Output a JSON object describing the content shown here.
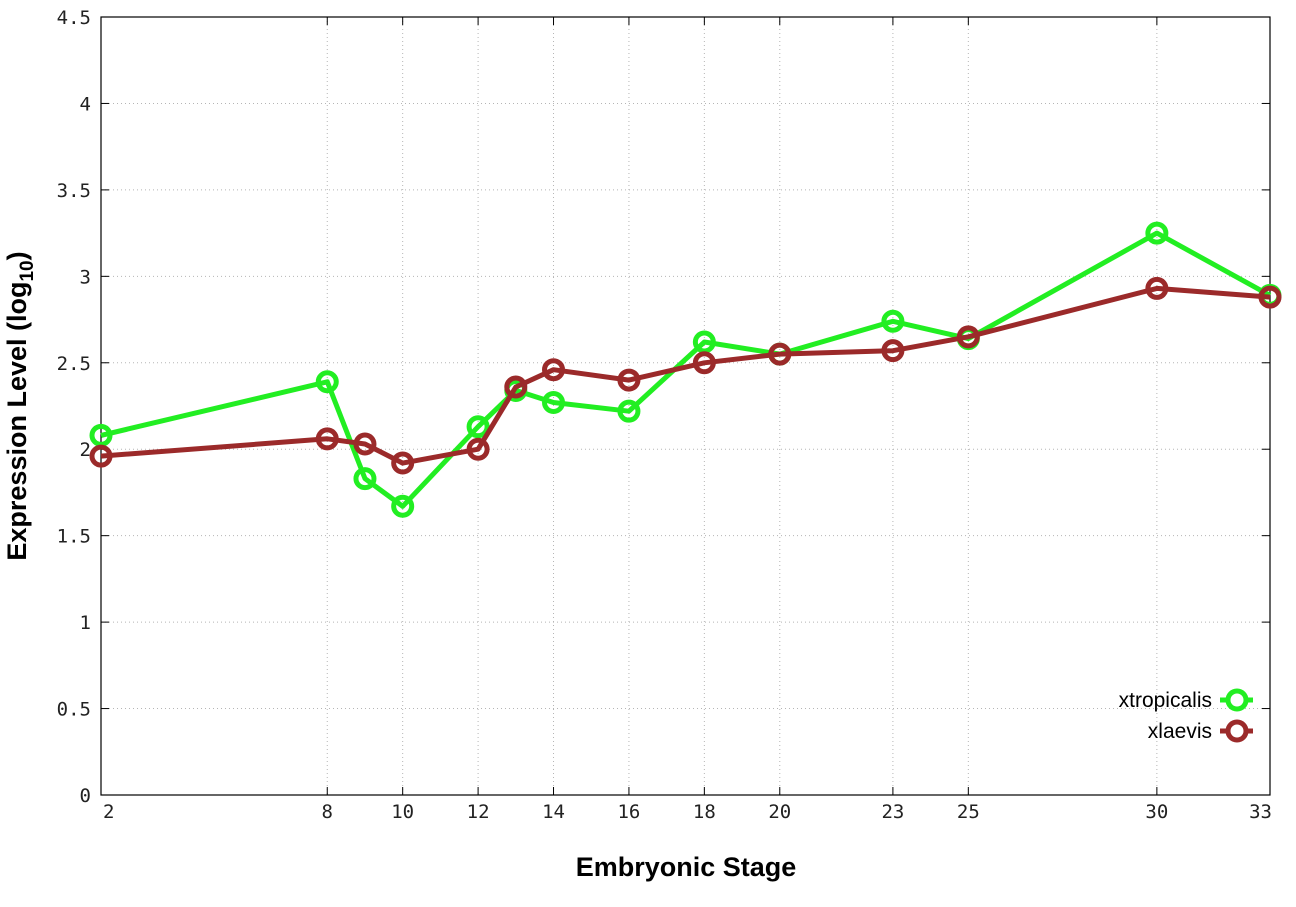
{
  "chart_data": {
    "type": "line",
    "xlabel": "Embryonic Stage",
    "ylabel": "Expression Level (log",
    "ylabel_sub": "10",
    "ylabel_close": ")",
    "xlim": [
      2,
      33
    ],
    "ylim": [
      0,
      4.5
    ],
    "x_ticks": [
      2,
      8,
      10,
      12,
      14,
      16,
      18,
      20,
      23,
      25,
      30,
      33
    ],
    "y_ticks": [
      0,
      0.5,
      1,
      1.5,
      2,
      2.5,
      3,
      3.5,
      4,
      4.5
    ],
    "y_tick_labels": [
      "0",
      "0.5",
      "1",
      "1.5",
      "2",
      "2.5",
      "3",
      "3.5",
      "4",
      "4.5"
    ],
    "grid": true,
    "legend_position": "bottom-right",
    "series": [
      {
        "name": "xtropicalis",
        "color": "#22ee22",
        "x": [
          2,
          8,
          9,
          10,
          12,
          13,
          14,
          16,
          18,
          20,
          23,
          25,
          30,
          33
        ],
        "y": [
          2.08,
          2.39,
          1.83,
          1.67,
          2.13,
          2.34,
          2.27,
          2.22,
          2.62,
          2.55,
          2.74,
          2.64,
          3.25,
          2.89
        ]
      },
      {
        "name": "xlaevis",
        "color": "#9b2a2a",
        "x": [
          2,
          8,
          9,
          10,
          12,
          13,
          14,
          16,
          18,
          20,
          23,
          25,
          30,
          33
        ],
        "y": [
          1.96,
          2.06,
          2.03,
          1.92,
          2.0,
          2.36,
          2.46,
          2.4,
          2.5,
          2.55,
          2.57,
          2.65,
          2.93,
          2.88
        ]
      }
    ]
  }
}
